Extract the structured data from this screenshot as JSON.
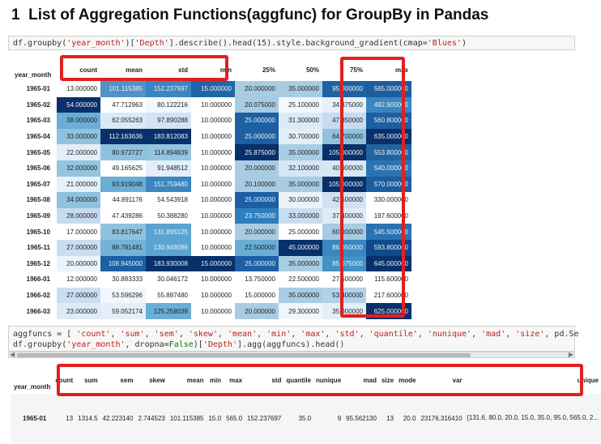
{
  "heading": {
    "number": "1",
    "text": "List of Aggregation Functions(aggfunc) for GroupBy in Pandas"
  },
  "cell1": {
    "p1": "df.groupby(",
    "s1": "'year_month'",
    "p2": ")[",
    "s2": "'Depth'",
    "p3": "].describe().head(15).style.background_gradient(cmap=",
    "s3": "'Blues'",
    "p4": ")"
  },
  "table1": {
    "index_name": "year_month",
    "columns": [
      "count",
      "mean",
      "std",
      "min",
      "25%",
      "50%",
      "75%",
      "max"
    ],
    "rows": [
      {
        "idx": "1965-01",
        "v": [
          "13.000000",
          "101.115385",
          "152.237697",
          "15.000000",
          "20.000000",
          "35.000000",
          "95.000000",
          "565.000000"
        ],
        "bg": [
          "#ffffff",
          "#4f93c8",
          "#3a86c0",
          "#1e66a8",
          "#a8cde3",
          "#a8cde3",
          "#1e62a5",
          "#1b5d9f"
        ]
      },
      {
        "idx": "1965-02",
        "v": [
          "54.000000",
          "47.712963",
          "80.122216",
          "10.000000",
          "20.075000",
          "25.100000",
          "34.375000",
          "482.900000"
        ],
        "bg": [
          "#08306b",
          "#ffffff",
          "#f4f8fc",
          "#ffffff",
          "#a6cbe2",
          "#f4f8fc",
          "#e6f0f9",
          "#3a86c0"
        ]
      },
      {
        "idx": "1965-03",
        "v": [
          "38.000000",
          "62.055263",
          "97.890288",
          "10.000000",
          "25.000000",
          "31.300000",
          "47.850000",
          "560.800000"
        ],
        "bg": [
          "#6aaed6",
          "#dbe9f6",
          "#d2e3f3",
          "#ffffff",
          "#1c5fa3",
          "#dce9f6",
          "#c6dbef",
          "#1d5fa2"
        ]
      },
      {
        "idx": "1965-04",
        "v": [
          "33.000000",
          "112.163636",
          "183.812083",
          "10.000000",
          "25.000000",
          "30.700000",
          "64.700000",
          "635.000000"
        ],
        "bg": [
          "#8fc2de",
          "#08306b",
          "#08306b",
          "#ffffff",
          "#1c5fa3",
          "#e3eef8",
          "#8fc2de",
          "#08306b"
        ]
      },
      {
        "idx": "1965-05",
        "v": [
          "22.000000",
          "80.972727",
          "114.894839",
          "10.000000",
          "25.875000",
          "35.000000",
          "105.000000",
          "553.800000"
        ],
        "bg": [
          "#e3eef8",
          "#8fc2de",
          "#94c4df",
          "#ffffff",
          "#08306b",
          "#a8cde3",
          "#08306b",
          "#20639f"
        ]
      },
      {
        "idx": "1965-06",
        "v": [
          "32.000000",
          "49.165625",
          "91.948512",
          "10.000000",
          "20.000000",
          "32.100000",
          "40.000000",
          "540.000000"
        ],
        "bg": [
          "#94c4df",
          "#ffffff",
          "#e3eef8",
          "#ffffff",
          "#a8cde3",
          "#d6e6f4",
          "#d8e7f5",
          "#2b74b3"
        ]
      },
      {
        "idx": "1965-07",
        "v": [
          "21.000000",
          "93.919048",
          "151.759480",
          "10.000000",
          "20.100000",
          "35.000000",
          "105.000000",
          "570.000000"
        ],
        "bg": [
          "#e6f0f9",
          "#6aaed6",
          "#3a86c0",
          "#ffffff",
          "#a6cbe2",
          "#a8cde3",
          "#08306b",
          "#1b5d9f"
        ]
      },
      {
        "idx": "1965-08",
        "v": [
          "34.000000",
          "44.891176",
          "54.543918",
          "10.000000",
          "25.000000",
          "30.000000",
          "42.500000",
          "330.000000"
        ],
        "bg": [
          "#8fc2de",
          "#ffffff",
          "#ffffff",
          "#ffffff",
          "#1c5fa3",
          "#eaf2fa",
          "#d0e1f2",
          "#ffffff"
        ]
      },
      {
        "idx": "1965-09",
        "v": [
          "28.000000",
          "47.439286",
          "50.388280",
          "10.000000",
          "23.750000",
          "33.000000",
          "37.400000",
          "197.600000"
        ],
        "bg": [
          "#c6dbef",
          "#ffffff",
          "#ffffff",
          "#ffffff",
          "#2f7ebc",
          "#c9ddf0",
          "#dfebf7",
          "#ffffff"
        ]
      },
      {
        "idx": "1965-10",
        "v": [
          "17.000000",
          "83.817647",
          "131.895125",
          "10.000000",
          "20.000000",
          "25.000000",
          "60.000000",
          "545.500000"
        ],
        "bg": [
          "#ffffff",
          "#8fc2de",
          "#5ba3d0",
          "#ffffff",
          "#a8cde3",
          "#ffffff",
          "#a6cbe2",
          "#2a72b2"
        ]
      },
      {
        "idx": "1965-11",
        "v": [
          "27.000000",
          "88.781481",
          "130.948096",
          "10.000000",
          "22.500000",
          "45.000000",
          "86.050000",
          "593.800000"
        ],
        "bg": [
          "#cbdef1",
          "#74b3d8",
          "#5ba3d0",
          "#ffffff",
          "#6aaed6",
          "#08306b",
          "#3a86c0",
          "#0e4a8c"
        ]
      },
      {
        "idx": "1965-12",
        "v": [
          "20.000000",
          "108.945000",
          "183.930008",
          "15.000000",
          "25.000000",
          "35.000000",
          "85.075000",
          "645.000000"
        ],
        "bg": [
          "#ecf4fb",
          "#1c5fa3",
          "#08306b",
          "#08306b",
          "#1c5fa3",
          "#a8cde3",
          "#4292c6",
          "#08306b"
        ]
      },
      {
        "idx": "1966-01",
        "v": [
          "12.000000",
          "30.883333",
          "30.046172",
          "10.000000",
          "13.750000",
          "22.500000",
          "27.500000",
          "115.600000"
        ],
        "bg": [
          "#ffffff",
          "#ffffff",
          "#ffffff",
          "#ffffff",
          "#ffffff",
          "#ffffff",
          "#ffffff",
          "#ffffff"
        ]
      },
      {
        "idx": "1966-02",
        "v": [
          "27.000000",
          "53.596296",
          "55.887480",
          "10.000000",
          "15.000000",
          "35.000000",
          "53.400000",
          "217.600000"
        ],
        "bg": [
          "#cbdef1",
          "#f2f7fd",
          "#ffffff",
          "#ffffff",
          "#ffffff",
          "#a8cde3",
          "#b2d2e8",
          "#ffffff"
        ]
      },
      {
        "idx": "1966-03",
        "v": [
          "23.000000",
          "59.052174",
          "125.258039",
          "10.000000",
          "20.000000",
          "29.300000",
          "35.000000",
          "625.000000"
        ],
        "bg": [
          "#deebf7",
          "#e3eef8",
          "#6aaed6",
          "#ffffff",
          "#a8cde3",
          "#f0f6fc",
          "#e3eef8",
          "#08306b"
        ]
      }
    ]
  },
  "cell2": {
    "line1": {
      "p1": "aggfuncs = [ ",
      "items": [
        "'count'",
        "'sum'",
        "'sem'",
        "'skew'",
        "'mean'",
        "'min'",
        "'max'",
        "'std'",
        "'quantile'",
        "'nunique'",
        "'mad'",
        "'size'"
      ],
      "tail": ", pd.Se"
    },
    "line2": {
      "p1": "df.groupby(",
      "s1": "'year_month'",
      "p2": ", dropna=",
      "kw": "False",
      "p3": ")[",
      "s2": "'Depth'",
      "p4": "].agg(aggfuncs).head()"
    }
  },
  "table2": {
    "index_name": "year_month",
    "columns": [
      "count",
      "sum",
      "sem",
      "skew",
      "mean",
      "min",
      "max",
      "std",
      "quantile",
      "nunique",
      "mad",
      "size",
      "mode",
      "var",
      "unique"
    ],
    "row": {
      "idx": "1965-01",
      "v": [
        "13",
        "1314.5",
        "42.223140",
        "2.744523",
        "101.115385",
        "15.0",
        "565.0",
        "152.237697",
        "35.0",
        "9",
        "95.562130",
        "13",
        "20.0",
        "23176.316410"
      ],
      "unique": "[131.6, 80.0, 20.0, 15.0, 35.0, 95.0, 565.0, 2..."
    }
  }
}
